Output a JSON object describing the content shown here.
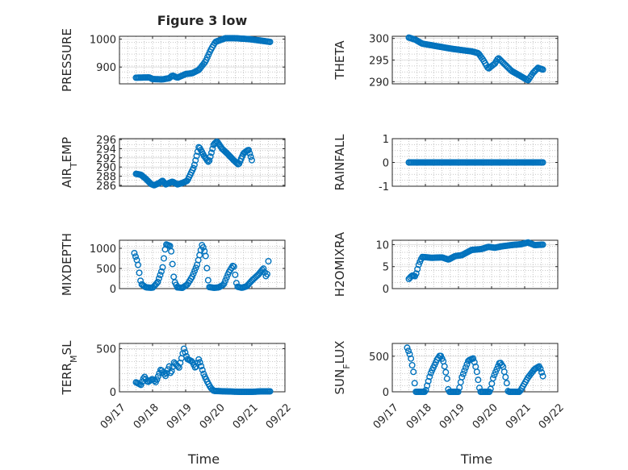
{
  "figure_title": "Figure 3 low",
  "colors": {
    "marker": "#0072BD",
    "axis": "#262626"
  },
  "chart_data": [
    {
      "type": "scatter",
      "id": "pressure",
      "ylabel": "PRESSURE",
      "ylabel_sub": "",
      "ylabel_after": "",
      "title": "Figure 3 low",
      "xlabel": "",
      "xlim": [
        0,
        5
      ],
      "ylim": [
        840,
        1010
      ],
      "yticks": [
        900,
        1000
      ],
      "ytick_labels": [
        "900",
        "1000"
      ],
      "show_xtick_labels": false,
      "xtick_labels": [],
      "keypoints": [
        [
          0.5,
          862
        ],
        [
          0.9,
          863
        ],
        [
          1.0,
          857
        ],
        [
          1.3,
          856
        ],
        [
          1.5,
          860
        ],
        [
          1.6,
          870
        ],
        [
          1.75,
          862
        ],
        [
          2.0,
          875
        ],
        [
          2.2,
          878
        ],
        [
          2.4,
          890
        ],
        [
          2.6,
          920
        ],
        [
          2.75,
          960
        ],
        [
          2.9,
          990
        ],
        [
          3.2,
          1003
        ],
        [
          3.5,
          1003
        ],
        [
          3.9,
          1000
        ],
        [
          4.3,
          994
        ],
        [
          4.55,
          990
        ]
      ],
      "n_points": 110
    },
    {
      "type": "scatter",
      "id": "theta",
      "ylabel": "THETA",
      "ylabel_sub": "",
      "ylabel_after": "",
      "title": "",
      "xlabel": "",
      "xlim": [
        0,
        5
      ],
      "ylim": [
        289.5,
        300.5
      ],
      "yticks": [
        290,
        295,
        300
      ],
      "ytick_labels": [
        "290",
        "295",
        "300"
      ],
      "show_xtick_labels": false,
      "xtick_labels": [],
      "keypoints": [
        [
          0.5,
          300.2
        ],
        [
          0.7,
          299.7
        ],
        [
          0.9,
          298.8
        ],
        [
          1.2,
          298.4
        ],
        [
          1.5,
          298.0
        ],
        [
          1.8,
          297.6
        ],
        [
          2.1,
          297.3
        ],
        [
          2.4,
          297.0
        ],
        [
          2.6,
          296.6
        ],
        [
          2.75,
          295.0
        ],
        [
          2.9,
          293.0
        ],
        [
          3.1,
          294.2
        ],
        [
          3.2,
          295.5
        ],
        [
          3.4,
          294.0
        ],
        [
          3.6,
          292.5
        ],
        [
          3.9,
          291.2
        ],
        [
          4.1,
          290.3
        ],
        [
          4.25,
          292.0
        ],
        [
          4.4,
          293.2
        ],
        [
          4.55,
          292.8
        ]
      ],
      "n_points": 110
    },
    {
      "type": "scatter",
      "id": "air_temp",
      "ylabel": "AIR",
      "ylabel_sub": "T",
      "ylabel_after": "EMP",
      "title": "",
      "xlabel": "",
      "xlim": [
        0,
        5
      ],
      "ylim": [
        285.8,
        296.2
      ],
      "yticks": [
        286,
        288,
        290,
        292,
        294,
        296
      ],
      "ytick_labels": [
        "286",
        "288",
        "290",
        "292",
        "294",
        "296"
      ],
      "show_xtick_labels": false,
      "xtick_labels": [],
      "keypoints": [
        [
          0.5,
          288.5
        ],
        [
          0.65,
          288.3
        ],
        [
          0.8,
          287.4
        ],
        [
          0.95,
          286.3
        ],
        [
          1.05,
          286.0
        ],
        [
          1.2,
          286.5
        ],
        [
          1.3,
          287.0
        ],
        [
          1.4,
          286.2
        ],
        [
          1.6,
          286.8
        ],
        [
          1.75,
          286.2
        ],
        [
          1.9,
          286.5
        ],
        [
          2.05,
          287.0
        ],
        [
          2.25,
          290.0
        ],
        [
          2.4,
          294.5
        ],
        [
          2.55,
          292.5
        ],
        [
          2.7,
          291.0
        ],
        [
          2.85,
          295.0
        ],
        [
          2.95,
          295.6
        ],
        [
          3.1,
          294.0
        ],
        [
          3.25,
          293.0
        ],
        [
          3.45,
          291.5
        ],
        [
          3.6,
          290.5
        ],
        [
          3.75,
          293.0
        ],
        [
          3.9,
          293.8
        ],
        [
          4.0,
          291.5
        ]
      ],
      "n_points": 110
    },
    {
      "type": "scatter",
      "id": "rainfall",
      "ylabel": "RAINFALL",
      "ylabel_sub": "",
      "ylabel_after": "",
      "title": "",
      "xlabel": "",
      "xlim": [
        0,
        5
      ],
      "ylim": [
        -1,
        1
      ],
      "yticks": [
        -1,
        0,
        1
      ],
      "ytick_labels": [
        "-1",
        "0",
        "1"
      ],
      "show_xtick_labels": false,
      "xtick_labels": [],
      "keypoints": [
        [
          0.5,
          0
        ],
        [
          4.55,
          0
        ]
      ],
      "n_points": 110
    },
    {
      "type": "scatter",
      "id": "mixdepth",
      "ylabel": "MIXDEPTH",
      "ylabel_sub": "",
      "ylabel_after": "",
      "title": "",
      "xlabel": "",
      "xlim": [
        0,
        5
      ],
      "ylim": [
        0,
        1200
      ],
      "yticks": [
        0,
        500,
        1000
      ],
      "ytick_labels": [
        "0",
        "500",
        "1000"
      ],
      "show_xtick_labels": false,
      "xtick_labels": [],
      "keypoints": [
        [
          0.45,
          880
        ],
        [
          0.55,
          650
        ],
        [
          0.65,
          120
        ],
        [
          0.8,
          30
        ],
        [
          1.0,
          20
        ],
        [
          1.15,
          150
        ],
        [
          1.3,
          500
        ],
        [
          1.4,
          1100
        ],
        [
          1.55,
          1050
        ],
        [
          1.65,
          200
        ],
        [
          1.75,
          30
        ],
        [
          1.9,
          20
        ],
        [
          2.05,
          100
        ],
        [
          2.2,
          300
        ],
        [
          2.35,
          600
        ],
        [
          2.5,
          1100
        ],
        [
          2.6,
          850
        ],
        [
          2.7,
          40
        ],
        [
          2.85,
          20
        ],
        [
          3.0,
          30
        ],
        [
          3.15,
          100
        ],
        [
          3.3,
          400
        ],
        [
          3.45,
          600
        ],
        [
          3.55,
          50
        ],
        [
          3.7,
          20
        ],
        [
          3.85,
          60
        ],
        [
          4.0,
          200
        ],
        [
          4.2,
          350
        ],
        [
          4.35,
          500
        ],
        [
          4.45,
          250
        ],
        [
          4.5,
          680
        ]
      ],
      "n_points": 110
    },
    {
      "type": "scatter",
      "id": "h2omixra",
      "ylabel": "H2OMIXRA",
      "ylabel_sub": "",
      "ylabel_after": "",
      "title": "",
      "xlabel": "",
      "xlim": [
        0,
        5
      ],
      "ylim": [
        0,
        11
      ],
      "yticks": [
        0,
        5,
        10
      ],
      "ytick_labels": [
        "0",
        "5",
        "10"
      ],
      "show_xtick_labels": false,
      "xtick_labels": [],
      "keypoints": [
        [
          0.5,
          2.2
        ],
        [
          0.6,
          3.0
        ],
        [
          0.7,
          2.8
        ],
        [
          0.8,
          5.5
        ],
        [
          0.9,
          7.2
        ],
        [
          1.2,
          7.0
        ],
        [
          1.5,
          7.1
        ],
        [
          1.7,
          6.6
        ],
        [
          1.9,
          7.4
        ],
        [
          2.1,
          7.6
        ],
        [
          2.4,
          8.8
        ],
        [
          2.7,
          9.0
        ],
        [
          2.9,
          9.5
        ],
        [
          3.1,
          9.3
        ],
        [
          3.3,
          9.6
        ],
        [
          3.6,
          9.9
        ],
        [
          3.9,
          10.1
        ],
        [
          4.1,
          10.5
        ],
        [
          4.3,
          9.9
        ],
        [
          4.55,
          10.0
        ]
      ],
      "n_points": 110
    },
    {
      "type": "scatter",
      "id": "terr_msl",
      "ylabel": "TERR",
      "ylabel_sub": "M",
      "ylabel_after": "SL",
      "title": "",
      "xlabel": "Time",
      "xlim": [
        0,
        5
      ],
      "ylim": [
        0,
        560
      ],
      "yticks": [
        0,
        500
      ],
      "ytick_labels": [
        "0",
        "500"
      ],
      "show_xtick_labels": true,
      "xtick_labels": [
        "09/17",
        "09/18",
        "09/19",
        "09/20",
        "09/21",
        "09/22"
      ],
      "keypoints": [
        [
          0.5,
          110
        ],
        [
          0.65,
          80
        ],
        [
          0.75,
          180
        ],
        [
          0.85,
          110
        ],
        [
          1.0,
          150
        ],
        [
          1.1,
          110
        ],
        [
          1.25,
          260
        ],
        [
          1.4,
          180
        ],
        [
          1.5,
          300
        ],
        [
          1.55,
          200
        ],
        [
          1.65,
          340
        ],
        [
          1.8,
          280
        ],
        [
          1.95,
          500
        ],
        [
          2.05,
          380
        ],
        [
          2.2,
          350
        ],
        [
          2.3,
          270
        ],
        [
          2.4,
          380
        ],
        [
          2.55,
          200
        ],
        [
          2.65,
          120
        ],
        [
          2.75,
          50
        ],
        [
          2.85,
          10
        ],
        [
          3.2,
          5
        ],
        [
          3.6,
          0
        ],
        [
          4.0,
          0
        ],
        [
          4.3,
          5
        ],
        [
          4.55,
          5
        ]
      ],
      "n_points": 110
    },
    {
      "type": "scatter",
      "id": "sun_flux",
      "ylabel": "SUN",
      "ylabel_sub": "F",
      "ylabel_after": "LUX",
      "title": "",
      "xlabel": "Time",
      "xlim": [
        0,
        5
      ],
      "ylim": [
        0,
        680
      ],
      "yticks": [
        0,
        500
      ],
      "ytick_labels": [
        "0",
        "500"
      ],
      "show_xtick_labels": true,
      "xtick_labels": [
        "09/17",
        "09/18",
        "09/19",
        "09/20",
        "09/21",
        "09/22"
      ],
      "keypoints": [
        [
          0.45,
          620
        ],
        [
          0.55,
          500
        ],
        [
          0.65,
          250
        ],
        [
          0.7,
          0
        ],
        [
          1.0,
          0
        ],
        [
          1.15,
          250
        ],
        [
          1.35,
          450
        ],
        [
          1.45,
          520
        ],
        [
          1.55,
          420
        ],
        [
          1.65,
          200
        ],
        [
          1.7,
          0
        ],
        [
          2.0,
          0
        ],
        [
          2.1,
          200
        ],
        [
          2.3,
          440
        ],
        [
          2.45,
          470
        ],
        [
          2.55,
          300
        ],
        [
          2.65,
          0
        ],
        [
          2.95,
          0
        ],
        [
          3.05,
          200
        ],
        [
          3.25,
          420
        ],
        [
          3.35,
          350
        ],
        [
          3.45,
          150
        ],
        [
          3.5,
          0
        ],
        [
          3.85,
          0
        ],
        [
          3.95,
          80
        ],
        [
          4.1,
          200
        ],
        [
          4.3,
          320
        ],
        [
          4.45,
          360
        ],
        [
          4.55,
          220
        ]
      ],
      "n_points": 110
    }
  ]
}
